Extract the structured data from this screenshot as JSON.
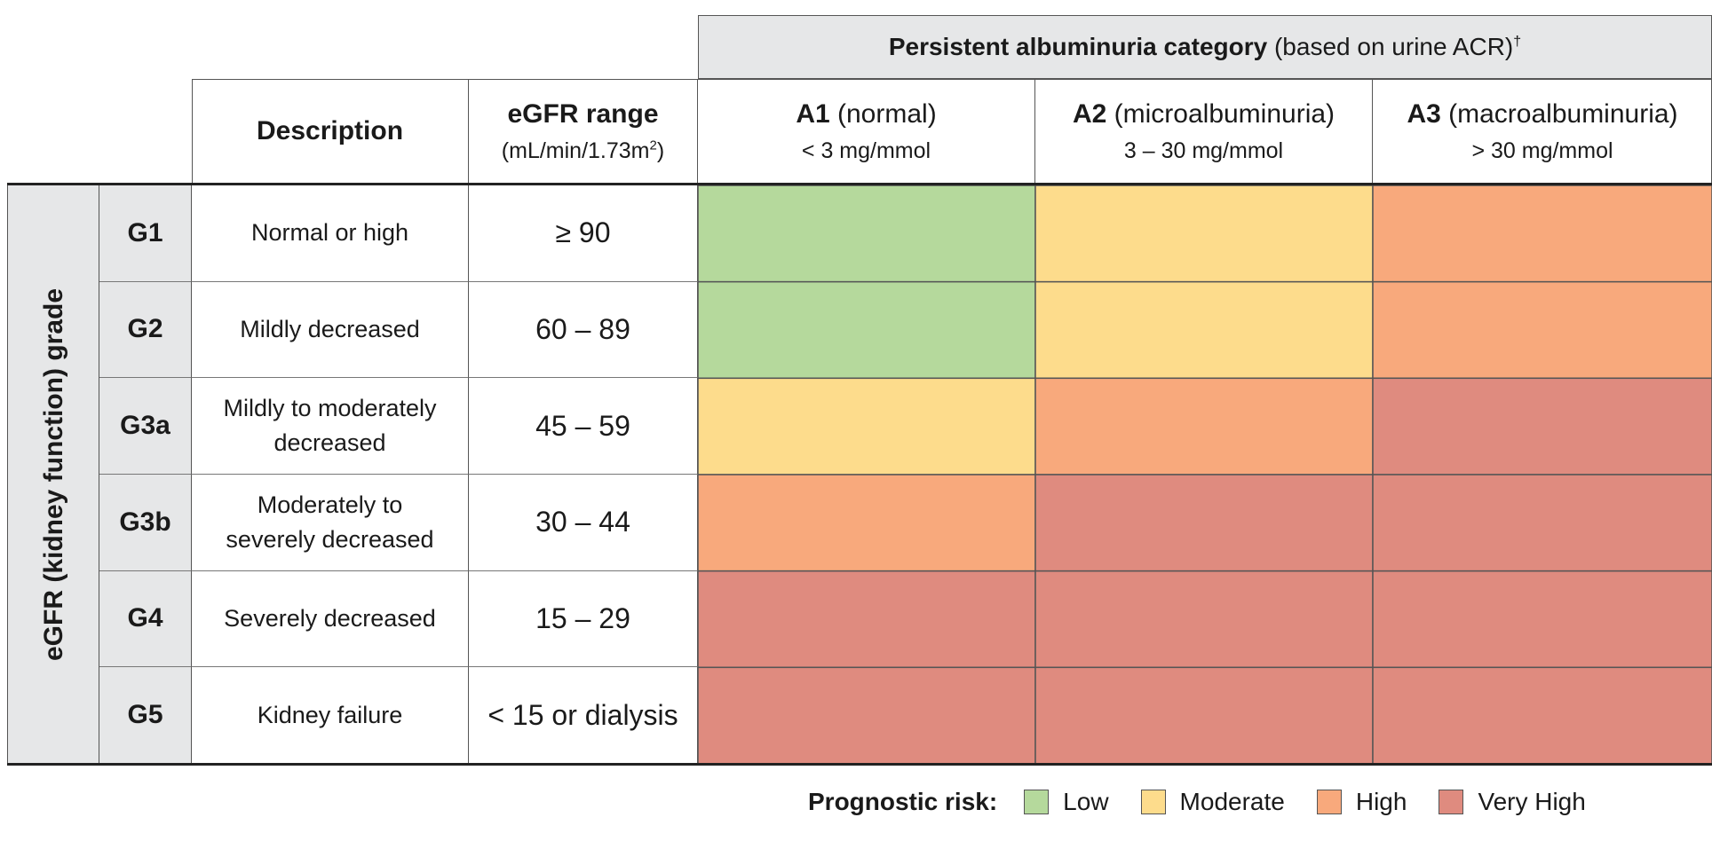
{
  "header": {
    "bold": "Persistent albuminuria category",
    "rest": " (based on urine ACR)",
    "dagger": "†"
  },
  "columns": {
    "description": "Description",
    "egfr_title": "eGFR range",
    "egfr_units_pre": "(mL/min/1.73m",
    "egfr_units_sup": "2",
    "egfr_units_post": ")",
    "a1": {
      "code": "A1",
      "name": " (normal)",
      "range": "< 3 mg/mmol"
    },
    "a2": {
      "code": "A2",
      "name": " (microalbuminuria)",
      "range": "3 – 30 mg/mmol"
    },
    "a3": {
      "code": "A3",
      "name": " (macroalbuminuria)",
      "range": "> 30 mg/mmol"
    }
  },
  "side_label": "eGFR (kidney function) grade",
  "rows": [
    {
      "grade": "G1",
      "desc1": "Normal or high",
      "desc2": "",
      "range": "≥ 90"
    },
    {
      "grade": "G2",
      "desc1": "Mildly decreased",
      "desc2": "",
      "range": "60 – 89"
    },
    {
      "grade": "G3a",
      "desc1": "Mildly to moderately",
      "desc2": "decreased",
      "range": "45 – 59"
    },
    {
      "grade": "G3b",
      "desc1": "Moderately to",
      "desc2": "severely decreased",
      "range": "30 – 44"
    },
    {
      "grade": "G4",
      "desc1": "Severely decreased",
      "desc2": "",
      "range": "15 – 29"
    },
    {
      "grade": "G5",
      "desc1": "Kidney failure",
      "desc2": "",
      "range": "< 15 or dialysis"
    }
  ],
  "legend": {
    "title": "Prognostic risk:",
    "items": [
      {
        "label": "Low",
        "color": "#b5d99c"
      },
      {
        "label": "Moderate",
        "color": "#fddc8c"
      },
      {
        "label": "High",
        "color": "#f8a97c"
      },
      {
        "label": "Very High",
        "color": "#df8b7f"
      }
    ]
  },
  "chart_data": {
    "type": "heatmap",
    "title": "Persistent albuminuria category (based on urine ACR)",
    "ylabel": "eGFR (kidney function) grade",
    "x_categories": [
      "A1",
      "A2",
      "A3"
    ],
    "y_categories": [
      "G1",
      "G2",
      "G3a",
      "G3b",
      "G4",
      "G5"
    ],
    "levels": [
      "Low",
      "Moderate",
      "High",
      "Very High"
    ],
    "cells": [
      [
        "Low",
        "Moderate",
        "High"
      ],
      [
        "Low",
        "Moderate",
        "High"
      ],
      [
        "Moderate",
        "High",
        "Very High"
      ],
      [
        "High",
        "Very High",
        "Very High"
      ],
      [
        "Very High",
        "Very High",
        "Very High"
      ],
      [
        "Very High",
        "Very High",
        "Very High"
      ]
    ]
  }
}
